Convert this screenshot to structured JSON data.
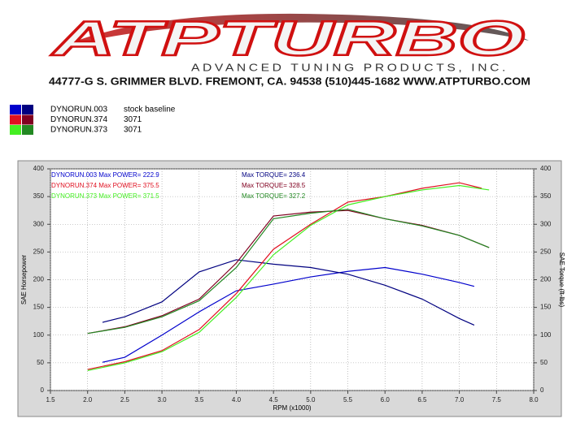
{
  "header": {
    "logo": "ATPTURBO",
    "tagline": "ADVANCED TUNING PRODUCTS, INC.",
    "address": "44777-G S. GRIMMER BLVD. FREMONT, CA. 94538 (510)445-1682 WWW.ATPTURBO.COM"
  },
  "legend": [
    {
      "name": "DYNORUN.003",
      "note": "stock baseline",
      "colors": [
        "#0000cc",
        "#000080"
      ]
    },
    {
      "name": "DYNORUN.374",
      "note": "3071",
      "colors": [
        "#e01020",
        "#800020"
      ]
    },
    {
      "name": "DYNORUN.373",
      "note": "3071",
      "colors": [
        "#44ee22",
        "#228822"
      ]
    }
  ],
  "chart_data": {
    "type": "line",
    "xlabel": "RPM (x1000)",
    "ylabel": "SAE Horsepower",
    "y2label": "SAE Torque (ft-lbs)",
    "xlim": [
      1.5,
      8.0
    ],
    "ylim": [
      0,
      400
    ],
    "y2lim": [
      0,
      400
    ],
    "grid": true,
    "xticks": [
      1.5,
      {
        "value": 2,
        "label": "2.0"
      },
      2.5,
      {
        "value": 3,
        "label": "3.0"
      },
      3.5,
      {
        "value": 4,
        "label": "4.0"
      },
      4.5,
      {
        "value": 5,
        "label": "5.0"
      },
      5.5,
      {
        "value": 6,
        "label": "6.0"
      },
      6.5,
      {
        "value": 7,
        "label": "7.0"
      },
      7.5,
      {
        "value": 8,
        "label": "8.0"
      }
    ],
    "yticks": [
      0,
      50,
      100,
      150,
      200,
      250,
      300,
      350,
      400
    ],
    "y2ticks": [
      0,
      50,
      100,
      150,
      200,
      250,
      300,
      350,
      400
    ],
    "annotations": [
      {
        "text": "DYNORUN.003  Max POWER= 222.9",
        "color": "#0000cc"
      },
      {
        "text": "Max TORQUE= 236.4",
        "color": "#000080"
      },
      {
        "text": "DYNORUN.374  Max POWER= 375.5",
        "color": "#e01020"
      },
      {
        "text": "Max TORQUE= 328.5",
        "color": "#800020"
      },
      {
        "text": "DYNORUN.373  Max POWER= 371.5",
        "color": "#44ee22"
      },
      {
        "text": "Max TORQUE= 327.2",
        "color": "#228822"
      }
    ],
    "series": [
      {
        "color": "#0000cc",
        "x": [
          2.2,
          2.5,
          3.0,
          3.5,
          4.0,
          4.5,
          5.0,
          5.5,
          6.0,
          6.5,
          7.0,
          7.2
        ],
        "values": [
          51,
          60,
          100,
          142,
          180,
          192,
          205,
          215,
          222,
          210,
          195,
          188
        ]
      },
      {
        "color": "#000080",
        "axis": "y2",
        "x": [
          2.2,
          2.5,
          3.0,
          3.5,
          4.0,
          4.5,
          5.0,
          5.5,
          6.0,
          6.5,
          7.0,
          7.2
        ],
        "values": [
          123,
          133,
          160,
          214,
          236,
          228,
          222,
          210,
          190,
          165,
          130,
          118
        ]
      },
      {
        "color": "#e01020",
        "x": [
          2.0,
          2.5,
          3.0,
          3.5,
          4.0,
          4.5,
          5.0,
          5.5,
          6.0,
          6.5,
          7.0,
          7.3
        ],
        "values": [
          38,
          52,
          72,
          110,
          175,
          255,
          300,
          340,
          350,
          365,
          375,
          365
        ]
      },
      {
        "color": "#800020",
        "axis": "y2",
        "x": [
          2.0,
          2.5,
          3.0,
          3.5,
          4.0,
          4.5,
          5.0,
          5.5,
          6.0,
          6.5,
          7.0,
          7.4
        ],
        "values": [
          103,
          115,
          135,
          165,
          230,
          315,
          322,
          325,
          310,
          298,
          280,
          258
        ]
      },
      {
        "color": "#44ee22",
        "x": [
          2.0,
          2.5,
          3.0,
          3.5,
          4.0,
          4.5,
          5.0,
          5.5,
          6.0,
          6.5,
          7.0,
          7.4
        ],
        "values": [
          36,
          50,
          70,
          105,
          168,
          245,
          298,
          335,
          350,
          362,
          370,
          362
        ]
      },
      {
        "color": "#228822",
        "axis": "y2",
        "x": [
          2.0,
          2.5,
          3.0,
          3.5,
          4.0,
          4.5,
          5.0,
          5.5,
          6.0,
          6.5,
          7.0,
          7.4
        ],
        "values": [
          103,
          114,
          133,
          162,
          222,
          310,
          320,
          327,
          310,
          297,
          280,
          258
        ]
      }
    ]
  }
}
